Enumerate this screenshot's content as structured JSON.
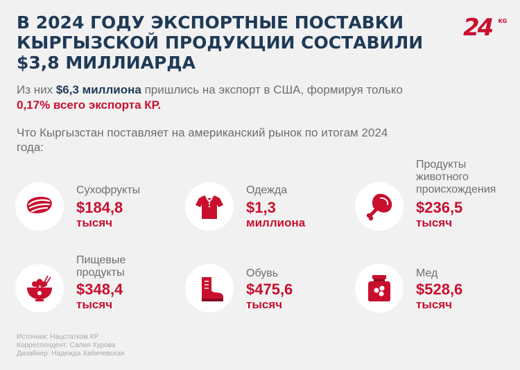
{
  "title": "В 2024 ГОДУ ЭКСПОРТНЫЕ ПОСТАВКИ КЫРГЫЗСКОЙ ПРОДУКЦИИ СОСТАВИЛИ $3,8 МИЛЛИАРДА",
  "logo": {
    "number": "24",
    "suffix": "KG"
  },
  "intro": {
    "p1": "Из них ",
    "amount": "$6,3 миллиона",
    "p2": " пришлись на экспорт в США, формируя только ",
    "share": "0,17% всего экспорта КР."
  },
  "question": "Что Кыргызстан поставляет на американский рынок по итогам 2024 года:",
  "items": [
    {
      "label": "Сухофрукты",
      "value": "$184,8",
      "unit": "тысяч",
      "icon": "dried-fruit-icon"
    },
    {
      "label": "Одежда",
      "value": "$1,3",
      "unit": "миллиона",
      "icon": "shirt-icon"
    },
    {
      "label": "Продукты животного происхождения",
      "value": "$236,5",
      "unit": "тысяч",
      "icon": "meat-leg-icon"
    },
    {
      "label": "Пищевые продукты",
      "value": "$348,4",
      "unit": "тысяч",
      "icon": "food-bowl-icon"
    },
    {
      "label": "Обувь",
      "value": "$475,6",
      "unit": "тысяч",
      "icon": "boot-icon"
    },
    {
      "label": "Мед",
      "value": "$528,6",
      "unit": "тысяч",
      "icon": "honey-jar-icon"
    }
  ],
  "credits": {
    "source": "Источник: Нацстатком КР",
    "correspondent": "Корреспондент: Салия Хурова",
    "designer": "Дизайнер: Надежда Хабичевская"
  },
  "colors": {
    "accent": "#c8102e",
    "title": "#1f3a56",
    "text": "#6d6e71",
    "background": "#f1f1f2"
  }
}
